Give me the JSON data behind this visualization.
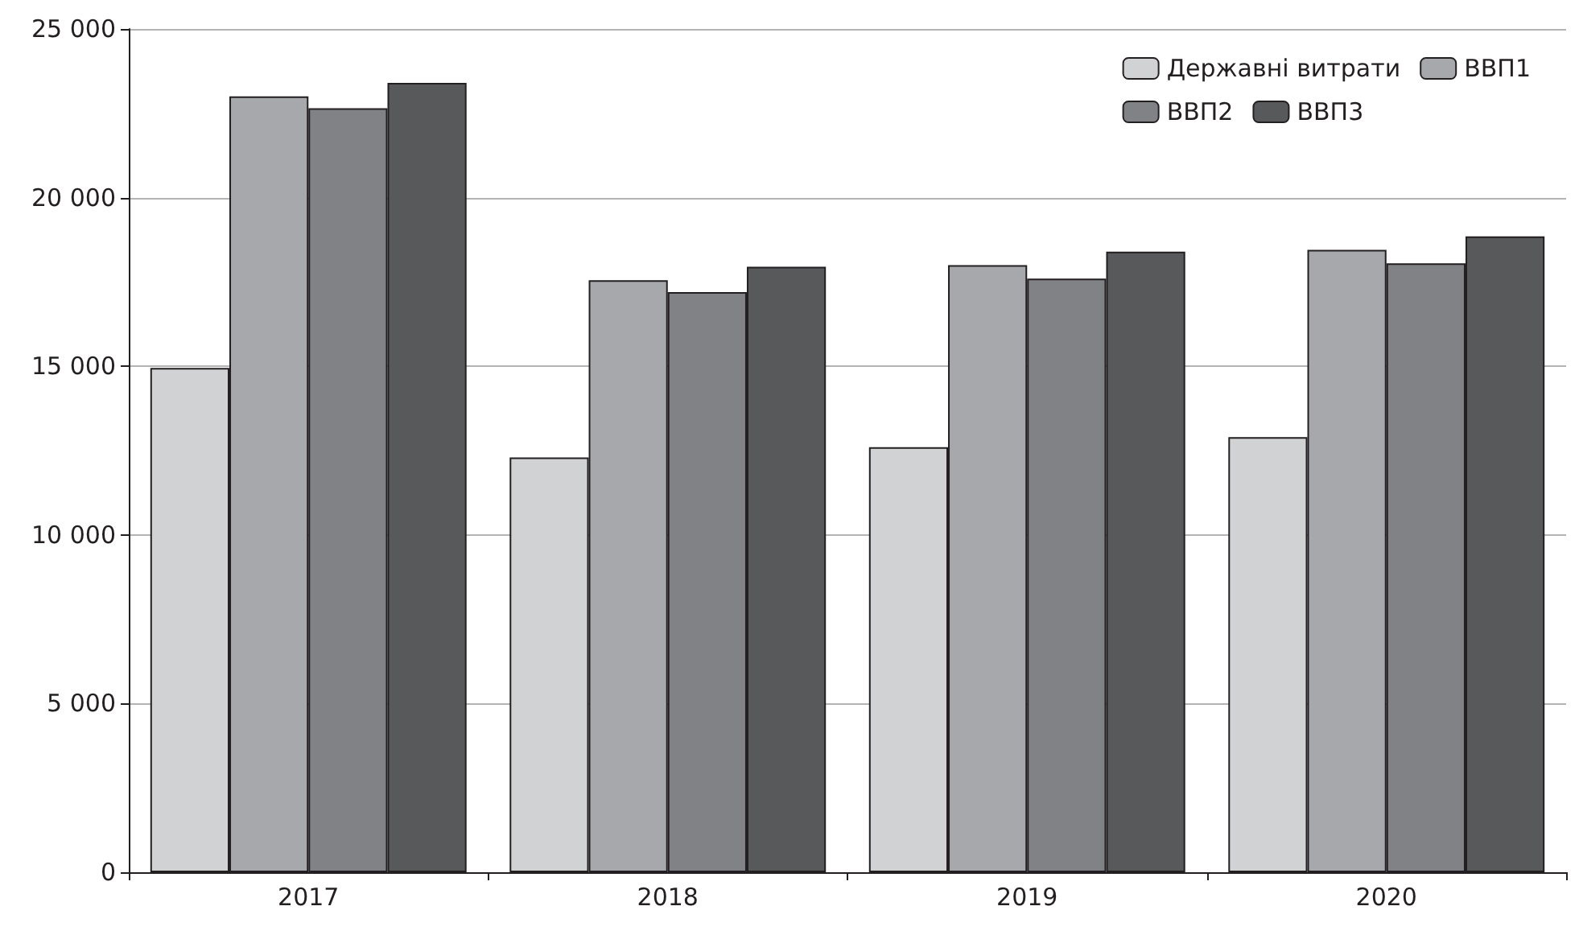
{
  "chart_data": {
    "type": "bar",
    "categories": [
      "2017",
      "2018",
      "2019",
      "2020"
    ],
    "series": [
      {
        "name": "Державні витрати",
        "color": "#d1d2d4",
        "values": [
          14950,
          12300,
          12600,
          12900
        ]
      },
      {
        "name": "ВВП1",
        "color": "#a7a8ac",
        "values": [
          23000,
          17550,
          18000,
          18450
        ]
      },
      {
        "name": "ВВП2",
        "color": "#808285",
        "values": [
          22650,
          17200,
          17600,
          18050
        ]
      },
      {
        "name": "ВВП3",
        "color": "#58595b",
        "values": [
          23400,
          17950,
          18400,
          18850
        ]
      }
    ],
    "ylim": [
      0,
      25000
    ],
    "yticks": [
      0,
      5000,
      10000,
      15000,
      20000,
      25000
    ],
    "grid": "y",
    "legend": "top right"
  }
}
